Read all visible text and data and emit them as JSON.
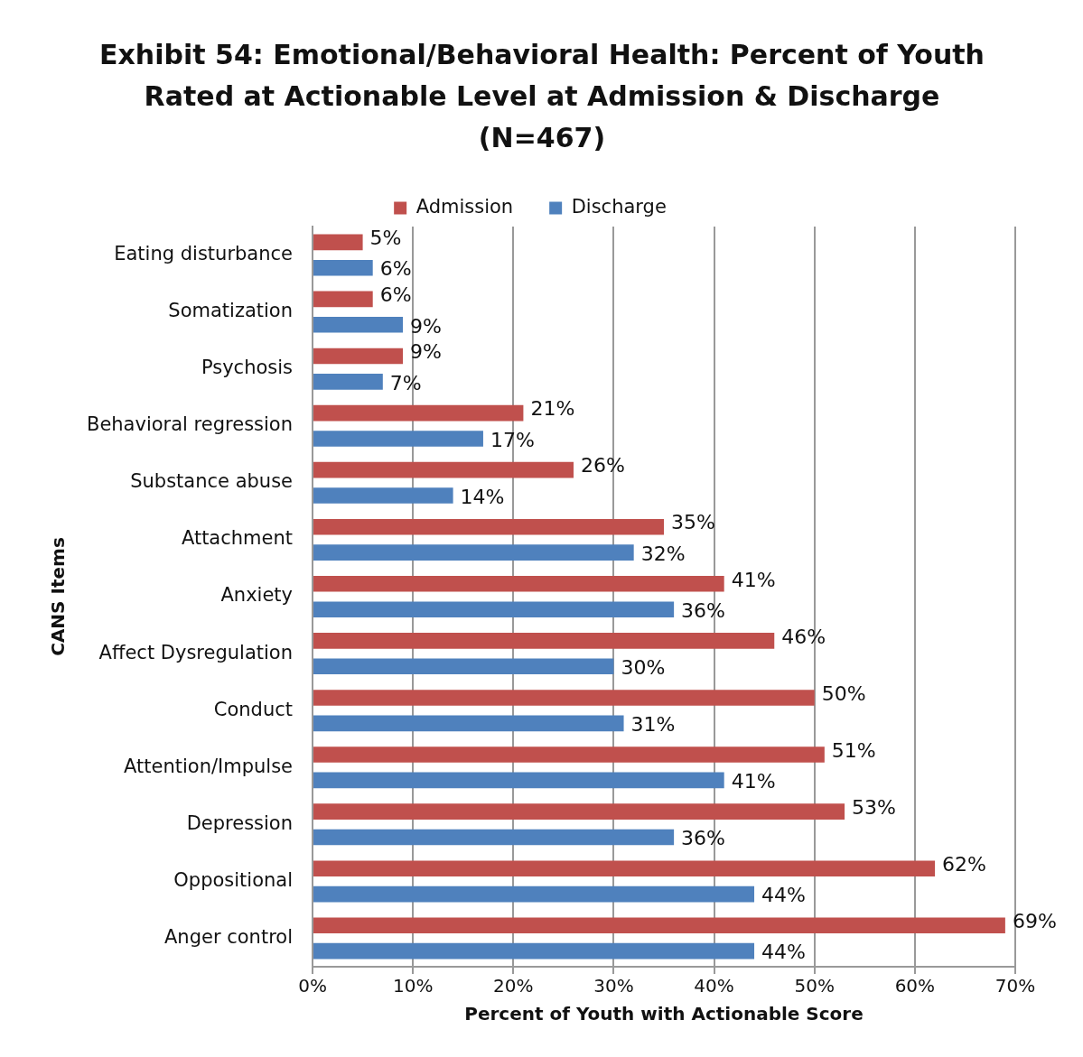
{
  "chart_data": {
    "type": "bar",
    "orientation": "horizontal",
    "title": "Exhibit 54: Emotional/Behavioral Health: Percent of Youth Rated at Actionable Level at Admission & Discharge (N=467)",
    "xlabel": "Percent of Youth with Actionable Score",
    "ylabel": "CANS Items",
    "categories": [
      "Eating disturbance",
      "Somatization",
      "Psychosis",
      "Behavioral regression",
      "Substance abuse",
      "Attachment",
      "Anxiety",
      "Affect Dysregulation",
      "Conduct",
      "Attention/Impulse",
      "Depression",
      "Oppositional",
      "Anger control"
    ],
    "series": [
      {
        "name": "Admission",
        "color": "#c0504d",
        "values": [
          5,
          6,
          9,
          21,
          26,
          35,
          41,
          46,
          50,
          51,
          53,
          62,
          69
        ],
        "value_labels": [
          "5%",
          "6%",
          "9%",
          "21%",
          "26%",
          "35%",
          "41%",
          "46%",
          "50%",
          "51%",
          "53%",
          "62%",
          "69%"
        ]
      },
      {
        "name": "Discharge",
        "color": "#4f81bd",
        "values": [
          6,
          9,
          7,
          17,
          14,
          32,
          36,
          30,
          31,
          41,
          36,
          44,
          44
        ],
        "value_labels": [
          "6%",
          "9%",
          "7%",
          "17%",
          "14%",
          "32%",
          "36%",
          "30%",
          "31%",
          "41%",
          "36%",
          "44%",
          "44%"
        ]
      }
    ],
    "xlim": [
      0,
      70
    ],
    "xticks": [
      {
        "value": 0,
        "label": "0%"
      },
      {
        "value": 10,
        "label": "10%"
      },
      {
        "value": 20,
        "label": "20%"
      },
      {
        "value": 30,
        "label": "30%"
      },
      {
        "value": 40,
        "label": "40%"
      },
      {
        "value": 50,
        "label": "50%"
      },
      {
        "value": 60,
        "label": "60%"
      },
      {
        "value": 70,
        "label": "70%"
      }
    ],
    "grid": "x",
    "legend": "top"
  }
}
